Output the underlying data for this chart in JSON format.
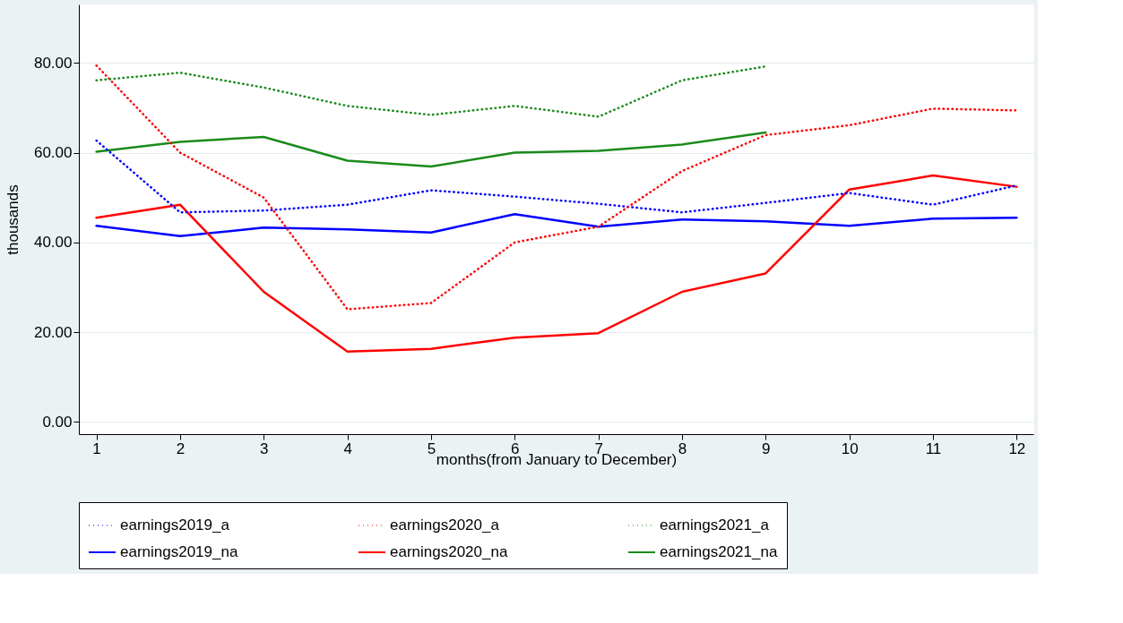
{
  "chart_data": {
    "type": "line",
    "xlabel": "months(from January to December)",
    "ylabel": "thousands",
    "x": [
      1,
      2,
      3,
      4,
      5,
      6,
      7,
      8,
      9,
      10,
      11,
      12
    ],
    "xlim": [
      0.79,
      12.2
    ],
    "xticks": [
      1,
      2,
      3,
      4,
      5,
      6,
      7,
      8,
      9,
      10,
      11,
      12
    ],
    "ylim": [
      -2.7,
      93
    ],
    "yticks": [
      {
        "value": 0,
        "label": "0.00"
      },
      {
        "value": 20,
        "label": "20.00"
      },
      {
        "value": 40,
        "label": "40.00"
      },
      {
        "value": 60,
        "label": "60.00"
      },
      {
        "value": 80,
        "label": "80.00"
      }
    ],
    "grid": "y",
    "legend": "bottom",
    "marker": "none",
    "series": [
      {
        "name": "earnings2019_a",
        "color": "#0000ff",
        "line_style": "dotted",
        "values": [
          62.7,
          46.7,
          47.1,
          48.4,
          51.6,
          50.2,
          48.6,
          46.7,
          48.8,
          51.0,
          48.4,
          52.7
        ]
      },
      {
        "name": "earnings2020_a",
        "color": "#ff0000",
        "line_style": "dotted",
        "values": [
          79.4,
          60.0,
          50.0,
          25.1,
          26.5,
          40.0,
          43.5,
          55.9,
          63.9,
          66.1,
          69.8,
          69.4
        ]
      },
      {
        "name": "earnings2021_a",
        "color": "#1a8a1a",
        "line_style": "dotted",
        "values": [
          76.1,
          77.8,
          74.5,
          70.4,
          68.4,
          70.4,
          68.0,
          76.1,
          79.2,
          null,
          null,
          null
        ]
      },
      {
        "name": "earnings2019_na",
        "color": "#0000ff",
        "line_style": "solid",
        "values": [
          43.7,
          41.4,
          43.3,
          42.9,
          42.2,
          46.3,
          43.5,
          45.1,
          44.7,
          43.7,
          45.3,
          45.5
        ]
      },
      {
        "name": "earnings2020_na",
        "color": "#ff0000",
        "line_style": "solid",
        "values": [
          45.5,
          48.4,
          29.0,
          15.7,
          16.3,
          18.8,
          19.8,
          29.0,
          33.1,
          51.8,
          54.9,
          52.4
        ]
      },
      {
        "name": "earnings2021_na",
        "color": "#1a8a1a",
        "line_style": "solid",
        "values": [
          60.2,
          62.4,
          63.5,
          58.2,
          56.9,
          60.0,
          60.4,
          61.8,
          64.5,
          null,
          null,
          null
        ]
      }
    ]
  }
}
